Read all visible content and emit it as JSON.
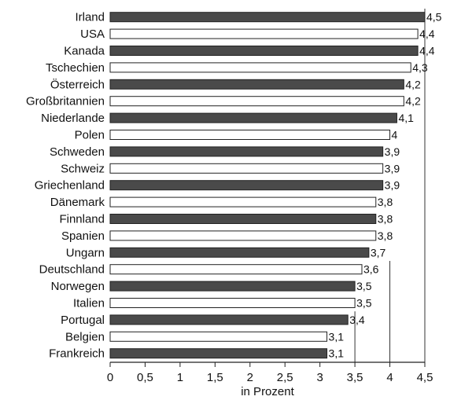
{
  "chart_data": {
    "type": "bar",
    "orientation": "horizontal",
    "categories": [
      "Irland",
      "USA",
      "Kanada",
      "Tschechien",
      "Österreich",
      "Großbritannien",
      "Niederlande",
      "Polen",
      "Schweden",
      "Schweiz",
      "Griechenland",
      "Dänemark",
      "Finnland",
      "Spanien",
      "Ungarn",
      "Deutschland",
      "Norwegen",
      "Italien",
      "Portugal",
      "Belgien",
      "Frankreich"
    ],
    "values": [
      4.5,
      4.4,
      4.4,
      4.3,
      4.2,
      4.2,
      4.1,
      4,
      3.9,
      3.9,
      3.9,
      3.8,
      3.8,
      3.8,
      3.7,
      3.6,
      3.5,
      3.5,
      3.4,
      3.1,
      3.1
    ],
    "value_labels": [
      "4,5",
      "4,4",
      "4,4",
      "4,3",
      "4,2",
      "4,2",
      "4,1",
      "4",
      "3,9",
      "3,9",
      "3,9",
      "3,8",
      "3,8",
      "3,8",
      "3,7",
      "3,6",
      "3,5",
      "3,5",
      "3,4",
      "3,1",
      "3,1"
    ],
    "bar_fill_pattern": [
      "dark",
      "light",
      "dark",
      "light",
      "dark",
      "light",
      "dark",
      "light",
      "dark",
      "light",
      "dark",
      "light",
      "dark",
      "light",
      "dark",
      "light",
      "dark",
      "light",
      "dark",
      "light",
      "dark"
    ],
    "colors": {
      "dark": "#4a4a4a",
      "light": "#ffffff",
      "outline": "#222222"
    },
    "xlabel": "in Prozent",
    "xlim": [
      0,
      4.5
    ],
    "xticks": [
      0,
      0.5,
      1,
      1.5,
      2,
      2.5,
      3,
      3.5,
      4,
      4.5
    ],
    "xtick_labels": [
      "0",
      "0,5",
      "1",
      "1,5",
      "2",
      "2,5",
      "3",
      "3,5",
      "4",
      "4,5"
    ],
    "reference_lines": [
      3.5,
      4,
      4.5
    ],
    "title": "",
    "ylabel": "",
    "grid": false
  }
}
